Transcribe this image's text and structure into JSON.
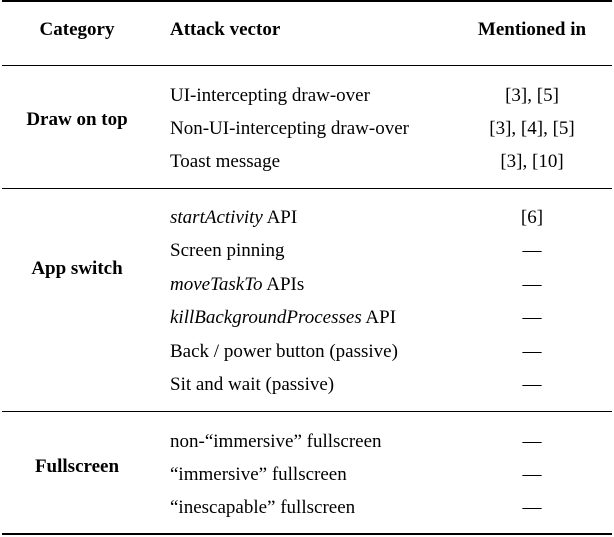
{
  "headers": {
    "category": "Category",
    "vector": "Attack vector",
    "mentioned": "Mentioned in"
  },
  "groups": [
    {
      "category": "Draw on top",
      "rows": [
        {
          "vector_italic": "",
          "vector_rest": "UI-intercepting draw-over",
          "mentioned": "[3], [5]"
        },
        {
          "vector_italic": "",
          "vector_rest": "Non-UI-intercepting draw-over",
          "mentioned": "[3], [4], [5]"
        },
        {
          "vector_italic": "",
          "vector_rest": "Toast message",
          "mentioned": "[3], [10]"
        }
      ]
    },
    {
      "category": "App switch",
      "rows": [
        {
          "vector_italic": "startActivity",
          "vector_rest": " API",
          "mentioned": "[6]"
        },
        {
          "vector_italic": "",
          "vector_rest": "Screen pinning",
          "mentioned": "—"
        },
        {
          "vector_italic": "moveTaskTo",
          "vector_rest": " APIs",
          "mentioned": "—"
        },
        {
          "vector_italic": "killBackgroundProcesses",
          "vector_rest": " API",
          "mentioned": "—"
        },
        {
          "vector_italic": "",
          "vector_rest": "Back / power button (passive)",
          "mentioned": "—"
        },
        {
          "vector_italic": "",
          "vector_rest": "Sit and wait (passive)",
          "mentioned": "—"
        }
      ]
    },
    {
      "category": "Fullscreen",
      "rows": [
        {
          "vector_italic": "",
          "vector_rest": "non-“immersive” fullscreen",
          "mentioned": "—"
        },
        {
          "vector_italic": "",
          "vector_rest": "“immersive” fullscreen",
          "mentioned": "—"
        },
        {
          "vector_italic": "",
          "vector_rest": "“inescapable” fullscreen",
          "mentioned": "—"
        }
      ]
    }
  ]
}
